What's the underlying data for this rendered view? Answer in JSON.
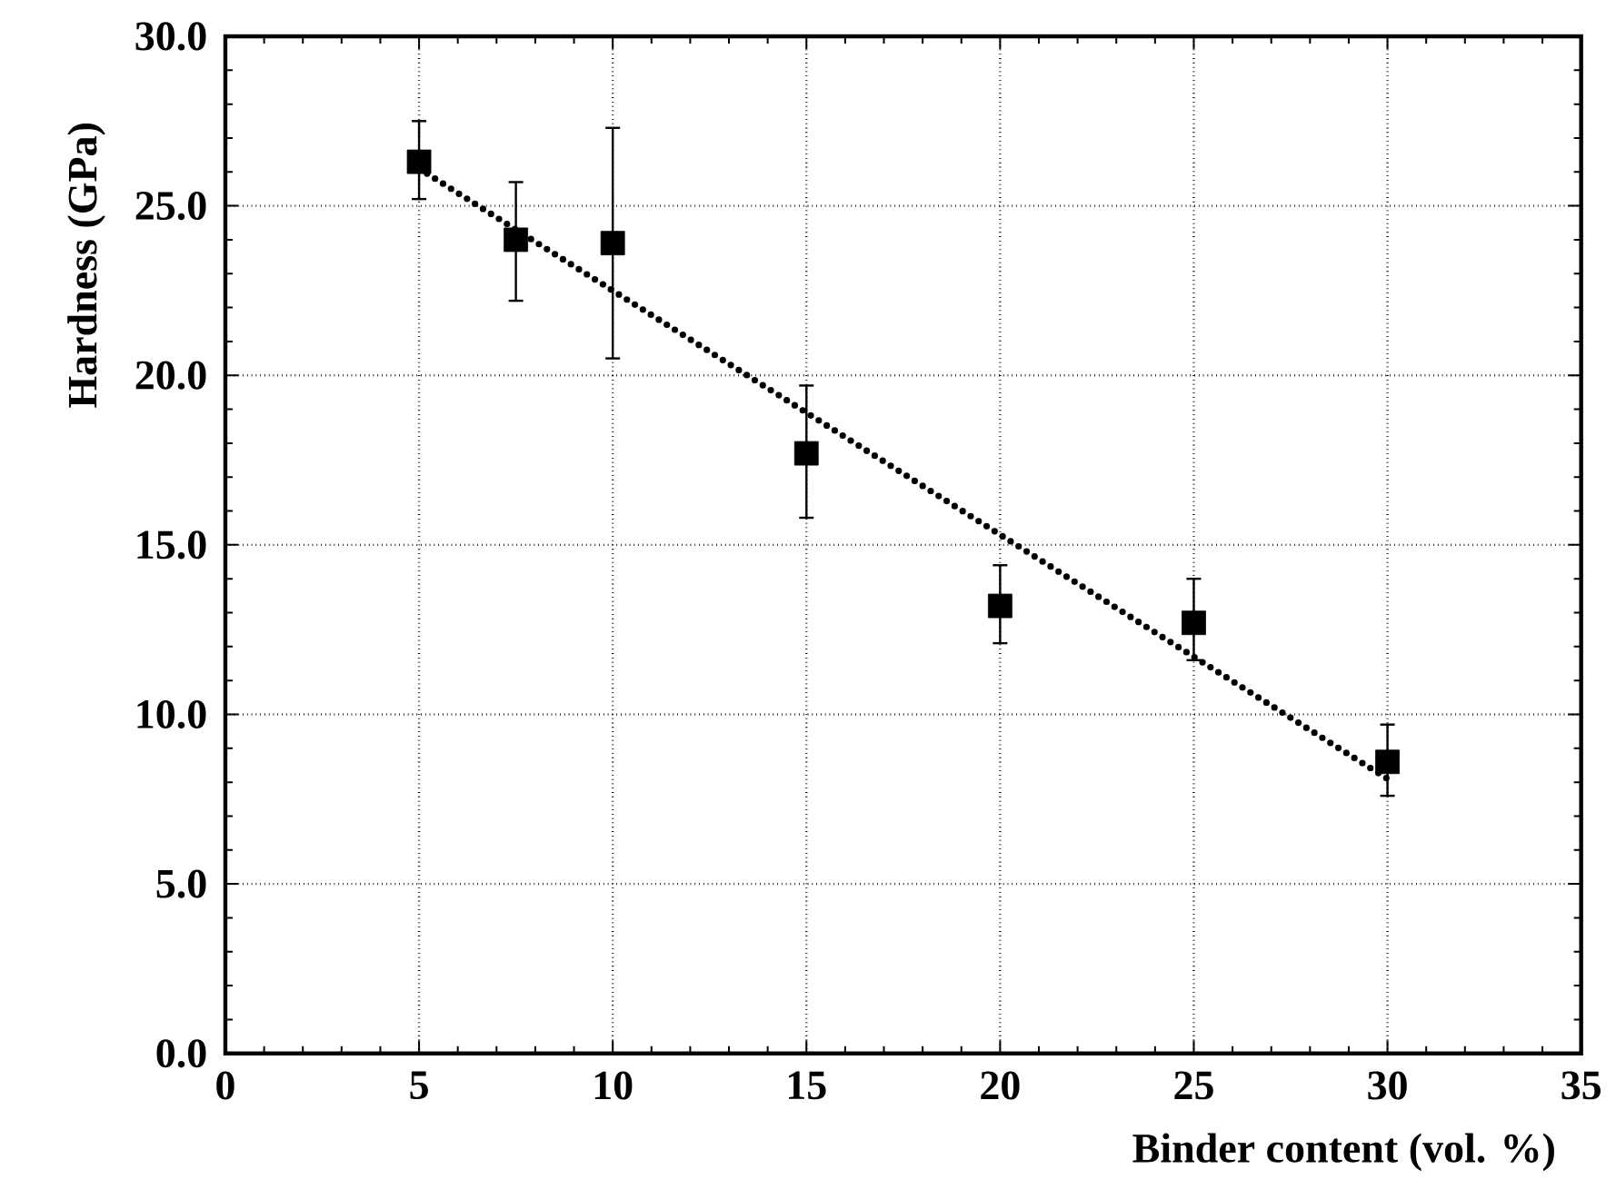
{
  "chart_data": {
    "type": "scatter",
    "xlabel": "Binder content (vol. %)",
    "ylabel": "Hardness (GPa)",
    "series": [
      {
        "type": "scatter",
        "color": "#000000",
        "marker": "square",
        "x": [
          5,
          7.5,
          10,
          15,
          20,
          25,
          30
        ],
        "values": [
          26.3,
          24.0,
          23.9,
          17.7,
          13.2,
          12.7,
          8.6
        ],
        "errors": [
          [
            25.2,
            27.5
          ],
          [
            22.2,
            25.7
          ],
          [
            20.5,
            27.3
          ],
          [
            15.8,
            19.7
          ],
          [
            12.1,
            14.4
          ],
          [
            11.6,
            14.0
          ],
          [
            7.6,
            9.7
          ]
        ]
      },
      {
        "type": "line",
        "color": "#000000",
        "marker": "none",
        "line_style": "dotted",
        "x": [
          5,
          30
        ],
        "values": [
          26.1,
          8.1
        ]
      }
    ],
    "xlim": [
      0,
      35
    ],
    "xticks": [
      0,
      5,
      10,
      15,
      20,
      25,
      30,
      35
    ],
    "ylim": [
      0,
      30
    ],
    "yticks": [
      {
        "value": 0,
        "label": "0.0"
      },
      {
        "value": 5,
        "label": "5.0"
      },
      {
        "value": 10,
        "label": "10.0"
      },
      {
        "value": 15,
        "label": "15.0"
      },
      {
        "value": 20,
        "label": "20.0"
      },
      {
        "value": 25,
        "label": "25.0"
      },
      {
        "value": 30,
        "label": "30.0"
      }
    ],
    "grid": true
  }
}
